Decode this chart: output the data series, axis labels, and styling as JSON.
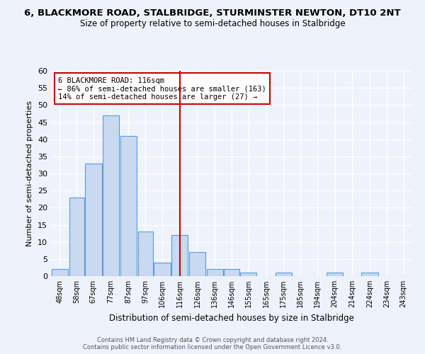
{
  "title_line1": "6, BLACKMORE ROAD, STALBRIDGE, STURMINSTER NEWTON, DT10 2NT",
  "title_line2": "Size of property relative to semi-detached houses in Stalbridge",
  "xlabel": "Distribution of semi-detached houses by size in Stalbridge",
  "ylabel": "Number of semi-detached properties",
  "bin_labels": [
    "48sqm",
    "58sqm",
    "67sqm",
    "77sqm",
    "87sqm",
    "97sqm",
    "106sqm",
    "116sqm",
    "126sqm",
    "136sqm",
    "146sqm",
    "155sqm",
    "165sqm",
    "175sqm",
    "185sqm",
    "194sqm",
    "204sqm",
    "214sqm",
    "224sqm",
    "234sqm",
    "243sqm"
  ],
  "bin_edges": [
    43,
    53,
    62,
    72,
    82,
    92,
    101,
    111,
    121,
    131,
    141,
    150,
    160,
    170,
    180,
    189,
    199,
    209,
    219,
    229,
    238,
    248
  ],
  "counts": [
    2,
    23,
    33,
    47,
    41,
    13,
    4,
    12,
    7,
    2,
    2,
    1,
    0,
    1,
    0,
    0,
    1,
    0,
    1,
    0,
    0
  ],
  "property_line_x": 116,
  "bar_fill_color": "#c8d9f0",
  "bar_edge_color": "#5b9bd5",
  "property_line_color": "#cc0000",
  "annotation_box_edge": "#cc0000",
  "annotation_title": "6 BLACKMORE ROAD: 116sqm",
  "annotation_line1": "← 86% of semi-detached houses are smaller (163)",
  "annotation_line2": "14% of semi-detached houses are larger (27) →",
  "ylim": [
    0,
    60
  ],
  "yticks": [
    0,
    5,
    10,
    15,
    20,
    25,
    30,
    35,
    40,
    45,
    50,
    55,
    60
  ],
  "footer_line1": "Contains HM Land Registry data © Crown copyright and database right 2024.",
  "footer_line2": "Contains public sector information licensed under the Open Government Licence v3.0.",
  "background_color": "#eef2fb"
}
